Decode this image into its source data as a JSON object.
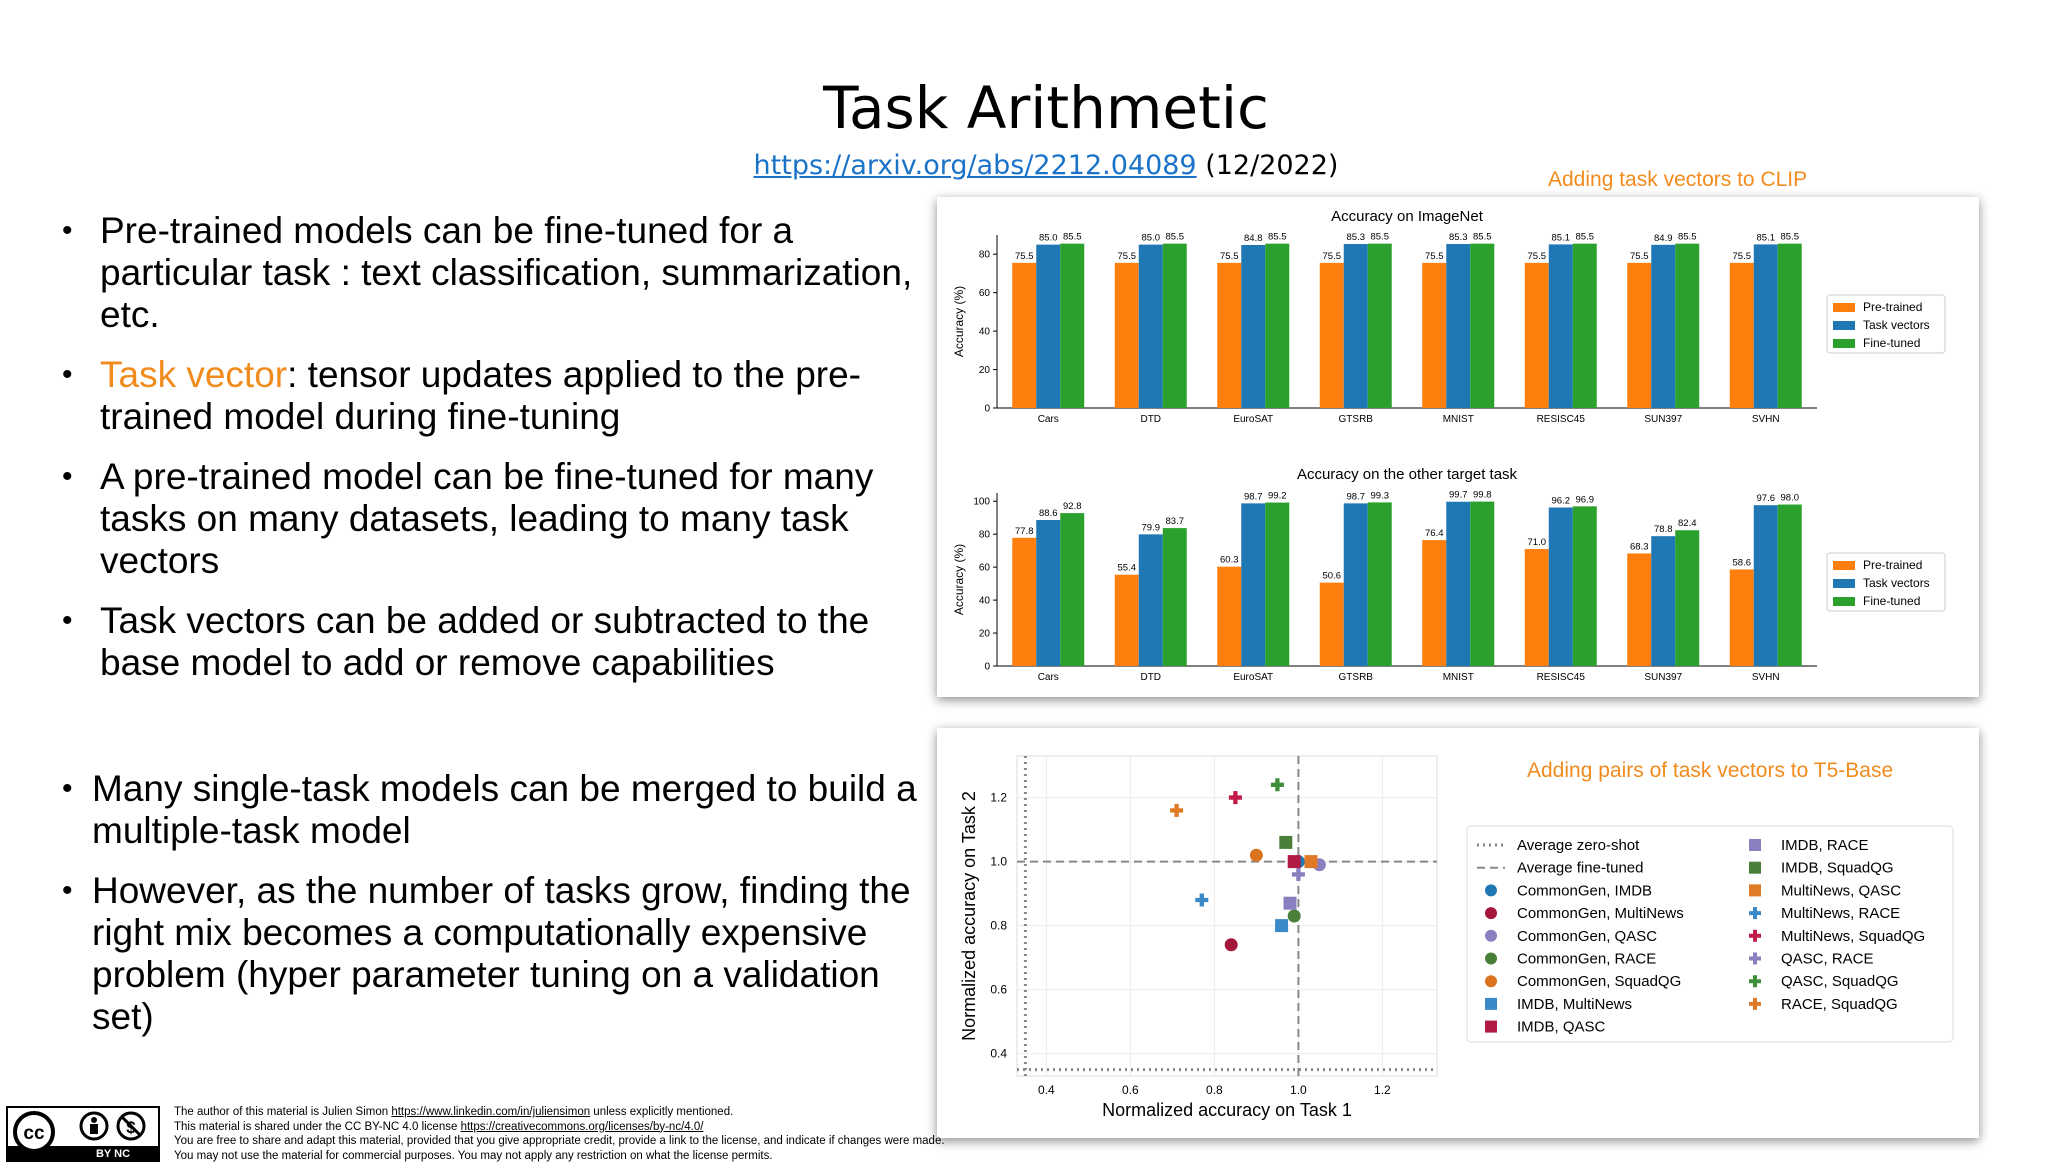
{
  "slide": {
    "title": "Task Arithmetic",
    "link_text": "https://arxiv.org/abs/2212.04089",
    "date": "(12/2022)",
    "bullets_top": [
      {
        "prefix": "",
        "highlight": "",
        "text": "Pre-trained models can be fine-tuned for a particular task : text classification, summarization, etc."
      },
      {
        "prefix": "",
        "highlight": "Task vector",
        "text": ": tensor updates applied to the pre-trained model during fine-tuning"
      },
      {
        "prefix": "",
        "highlight": "",
        "text": "A pre-trained model can be fine-tuned for many tasks on many datasets, leading to many task vectors"
      },
      {
        "prefix": "",
        "highlight": "",
        "text": "Task vectors can be added or subtracted to the base model to add or remove capabilities"
      }
    ],
    "bullets_bottom": [
      "Many single-task models can be merged to build a multiple-task model",
      "However, as the number of tasks grow, finding the right mix becomes a computationally expensive problem (hyper parameter tuning on a validation set)"
    ],
    "clip_label": "Adding task vectors to CLIP",
    "t5_label": "Adding pairs of task vectors to T5-Base",
    "footer": {
      "line1_pre": "The author of this material is Julien Simon ",
      "line1_link": "https://www.linkedin.com/in/juliensimon",
      "line1_post": " unless explicitly mentioned.",
      "line2_pre": "This material is shared under the CC BY-NC 4.0 license ",
      "line2_link": "https://creativecommons.org/licenses/by-nc/4.0/",
      "line3": "You are free to share and adapt this material, provided that you give appropriate credit, provide a link to the license, and indicate if changes were made.",
      "line4": "You may not use the material for commercial purposes. You may not apply any restriction on what the license permits.",
      "cc_badge": "BY  NC"
    }
  },
  "chart_data": [
    {
      "type": "bar",
      "title": "Accuracy on ImageNet",
      "ylabel": "Accuracy (%)",
      "ylim": [
        0,
        90
      ],
      "yticks": [
        0,
        20,
        40,
        60,
        80
      ],
      "categories": [
        "Cars",
        "DTD",
        "EuroSAT",
        "GTSRB",
        "MNIST",
        "RESISC45",
        "SUN397",
        "SVHN"
      ],
      "series": [
        {
          "name": "Pre-trained",
          "color": "#ff7f0e",
          "values": [
            75.5,
            75.5,
            75.5,
            75.5,
            75.5,
            75.5,
            75.5,
            75.5
          ]
        },
        {
          "name": "Task vectors",
          "color": "#1f77b4",
          "values": [
            85.0,
            85.0,
            84.8,
            85.3,
            85.3,
            85.1,
            84.9,
            85.1
          ]
        },
        {
          "name": "Fine-tuned",
          "color": "#2ca02c",
          "values": [
            85.5,
            85.5,
            85.5,
            85.5,
            85.5,
            85.5,
            85.5,
            85.5
          ]
        }
      ],
      "legend": "right"
    },
    {
      "type": "bar",
      "title": "Accuracy on the other target task",
      "ylabel": "Accuracy (%)",
      "ylim": [
        0,
        105
      ],
      "yticks": [
        0,
        20,
        40,
        60,
        80,
        100
      ],
      "categories": [
        "Cars",
        "DTD",
        "EuroSAT",
        "GTSRB",
        "MNIST",
        "RESISC45",
        "SUN397",
        "SVHN"
      ],
      "series": [
        {
          "name": "Pre-trained",
          "color": "#ff7f0e",
          "values": [
            77.8,
            55.4,
            60.3,
            50.6,
            76.4,
            71.0,
            68.3,
            58.6
          ]
        },
        {
          "name": "Task vectors",
          "color": "#1f77b4",
          "values": [
            88.6,
            79.9,
            98.7,
            98.7,
            99.7,
            96.2,
            78.8,
            97.6
          ]
        },
        {
          "name": "Fine-tuned",
          "color": "#2ca02c",
          "values": [
            92.8,
            83.7,
            99.2,
            99.3,
            99.8,
            96.9,
            82.4,
            98.0
          ]
        }
      ],
      "legend": "right"
    },
    {
      "type": "scatter",
      "xlabel": "Normalized accuracy on Task 1",
      "ylabel": "Normalized accuracy on Task 2",
      "xlim": [
        0.33,
        1.33
      ],
      "ylim": [
        0.33,
        1.33
      ],
      "xticks": [
        0.4,
        0.6,
        0.8,
        1.0,
        1.2
      ],
      "yticks": [
        0.4,
        0.6,
        0.8,
        1.0,
        1.2
      ],
      "reference_lines": [
        {
          "name": "Average zero-shot",
          "style": "dotted",
          "x": 0.35,
          "y": 0.35
        },
        {
          "name": "Average fine-tuned",
          "style": "dashed",
          "x": 1.0,
          "y": 1.0
        }
      ],
      "points": [
        {
          "name": "CommonGen, IMDB",
          "marker": "circle",
          "color": "#1f77b4",
          "x": 1.0,
          "y": 1.0
        },
        {
          "name": "CommonGen, MultiNews",
          "marker": "circle",
          "color": "#a3173d",
          "x": 0.84,
          "y": 0.74
        },
        {
          "name": "CommonGen, QASC",
          "marker": "circle",
          "color": "#8c7fc0",
          "x": 1.05,
          "y": 0.99
        },
        {
          "name": "CommonGen, RACE",
          "marker": "circle",
          "color": "#4a7f3a",
          "x": 0.99,
          "y": 0.83
        },
        {
          "name": "CommonGen, SquadQG",
          "marker": "circle",
          "color": "#d9731d",
          "x": 0.9,
          "y": 1.02
        },
        {
          "name": "IMDB, MultiNews",
          "marker": "square",
          "color": "#3a89c9",
          "x": 0.96,
          "y": 0.8
        },
        {
          "name": "IMDB, QASC",
          "marker": "square",
          "color": "#b01a45",
          "x": 0.99,
          "y": 1.0
        },
        {
          "name": "IMDB, RACE",
          "marker": "square",
          "color": "#8c7fc0",
          "x": 0.98,
          "y": 0.87
        },
        {
          "name": "IMDB, SquadQG",
          "marker": "square",
          "color": "#4a7f3a",
          "x": 0.97,
          "y": 1.06
        },
        {
          "name": "MultiNews, QASC",
          "marker": "square",
          "color": "#e07a26",
          "x": 1.03,
          "y": 1.0
        },
        {
          "name": "MultiNews, RACE",
          "marker": "plus",
          "color": "#3a89c9",
          "x": 0.77,
          "y": 0.88
        },
        {
          "name": "MultiNews, SquadQG",
          "marker": "plus",
          "color": "#c11a48",
          "x": 0.85,
          "y": 1.2
        },
        {
          "name": "QASC, RACE",
          "marker": "plus",
          "color": "#8c7fc0",
          "x": 1.0,
          "y": 0.96
        },
        {
          "name": "QASC, SquadQG",
          "marker": "plus",
          "color": "#3f8f3a",
          "x": 0.95,
          "y": 1.24
        },
        {
          "name": "RACE, SquadQG",
          "marker": "plus",
          "color": "#e07a26",
          "x": 0.71,
          "y": 1.16
        }
      ],
      "legend": "right"
    }
  ]
}
